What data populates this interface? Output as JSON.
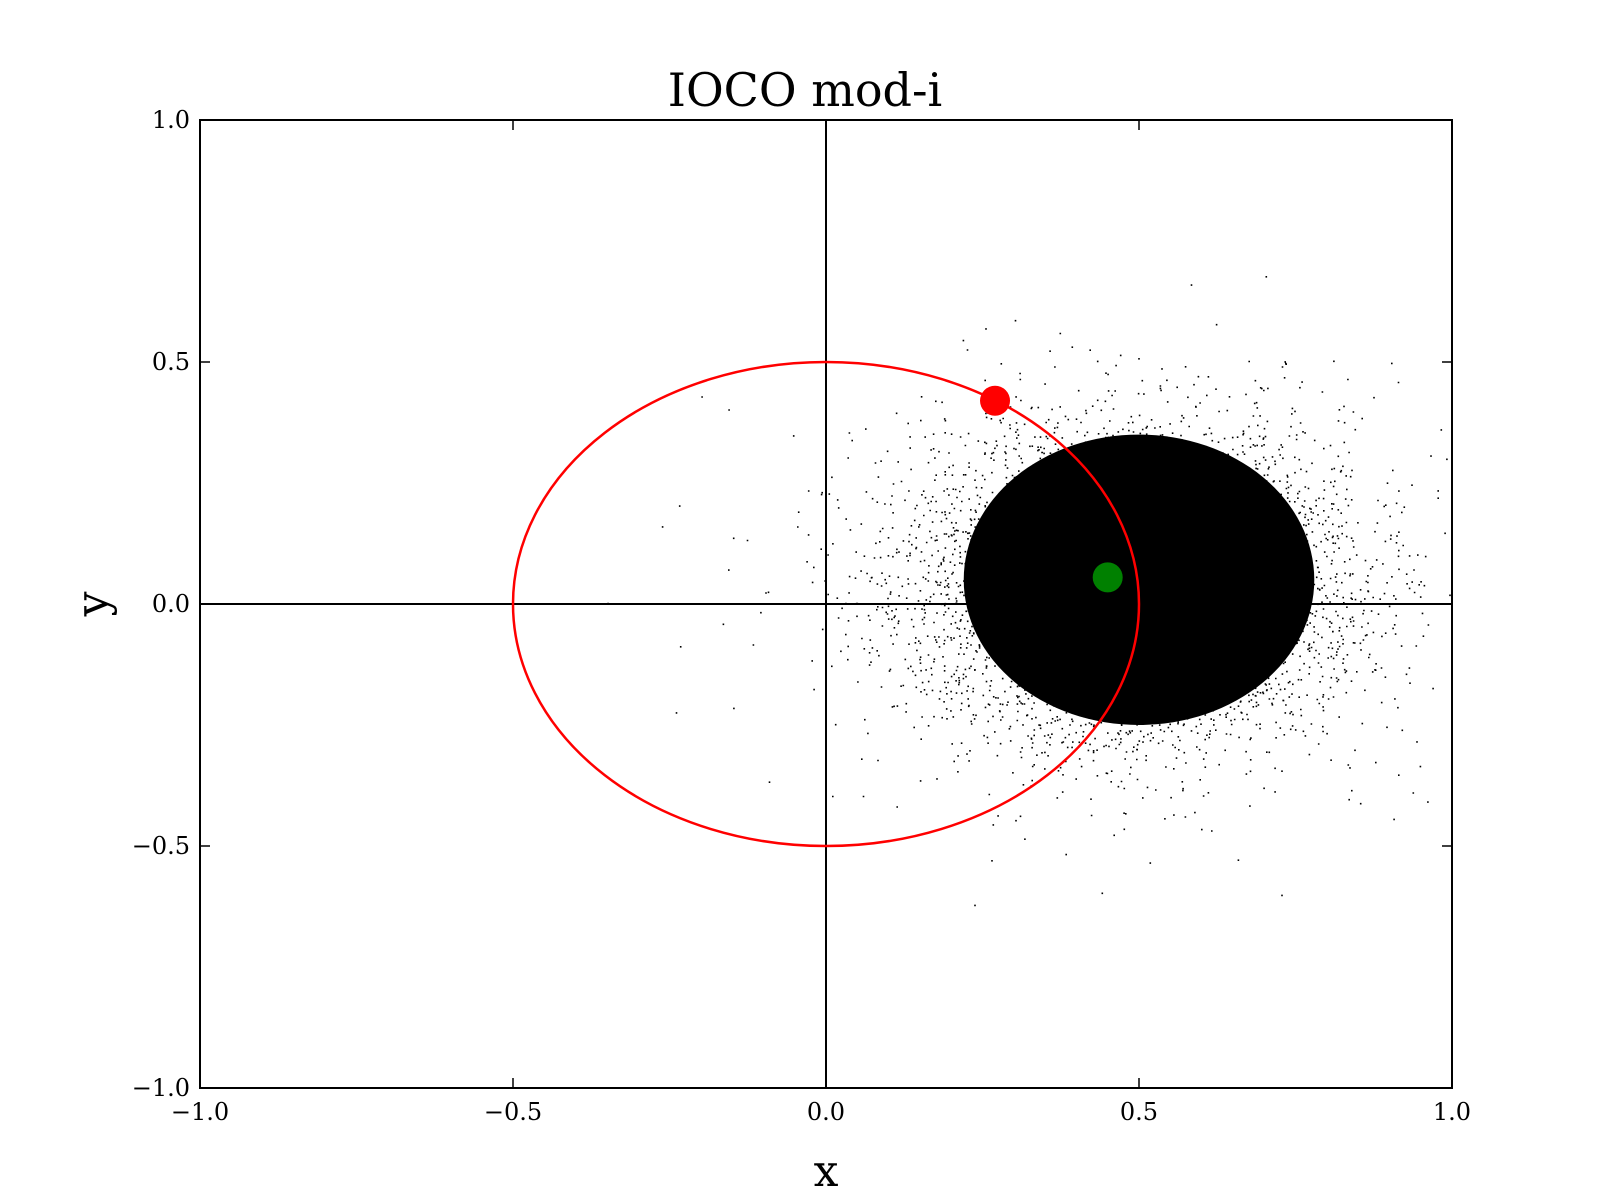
{
  "chart_data": {
    "type": "scatter",
    "title": "IOCO mod-i",
    "xlabel": "x",
    "ylabel": "y",
    "xlim": [
      -1.0,
      1.0
    ],
    "ylim": [
      -1.0,
      1.0
    ],
    "x_ticks": [
      -1.0,
      -0.5,
      0.0,
      0.5,
      1.0
    ],
    "y_ticks": [
      -1.0,
      -0.5,
      0.0,
      0.5,
      1.0
    ],
    "x_tick_labels": [
      "−1.0",
      "−0.5",
      "0.0",
      "0.5",
      "1.0"
    ],
    "y_tick_labels": [
      "−1.0",
      "−0.5",
      "0.0",
      "0.5",
      "1.0"
    ],
    "grid": false,
    "legend": "none",
    "reference_lines": {
      "x": 0.0,
      "y": 0.0,
      "color": "#000000"
    },
    "point_cloud": {
      "color": "#000000",
      "center": [
        0.5,
        0.05
      ],
      "spread": [
        0.17,
        0.16
      ],
      "core_radius": [
        0.28,
        0.3
      ],
      "approx_extent": {
        "x": [
          -0.4,
          1.0
        ],
        "y": [
          -0.82,
          0.81
        ]
      }
    },
    "ellipse": {
      "center": [
        0.0,
        0.0
      ],
      "rx": 0.5,
      "ry": 0.5,
      "color": "#ff0000"
    },
    "markers": [
      {
        "name": "red point",
        "x": 0.27,
        "y": 0.42,
        "color": "#ff0000"
      },
      {
        "name": "green point",
        "x": 0.45,
        "y": 0.055,
        "color": "#008000"
      }
    ]
  }
}
